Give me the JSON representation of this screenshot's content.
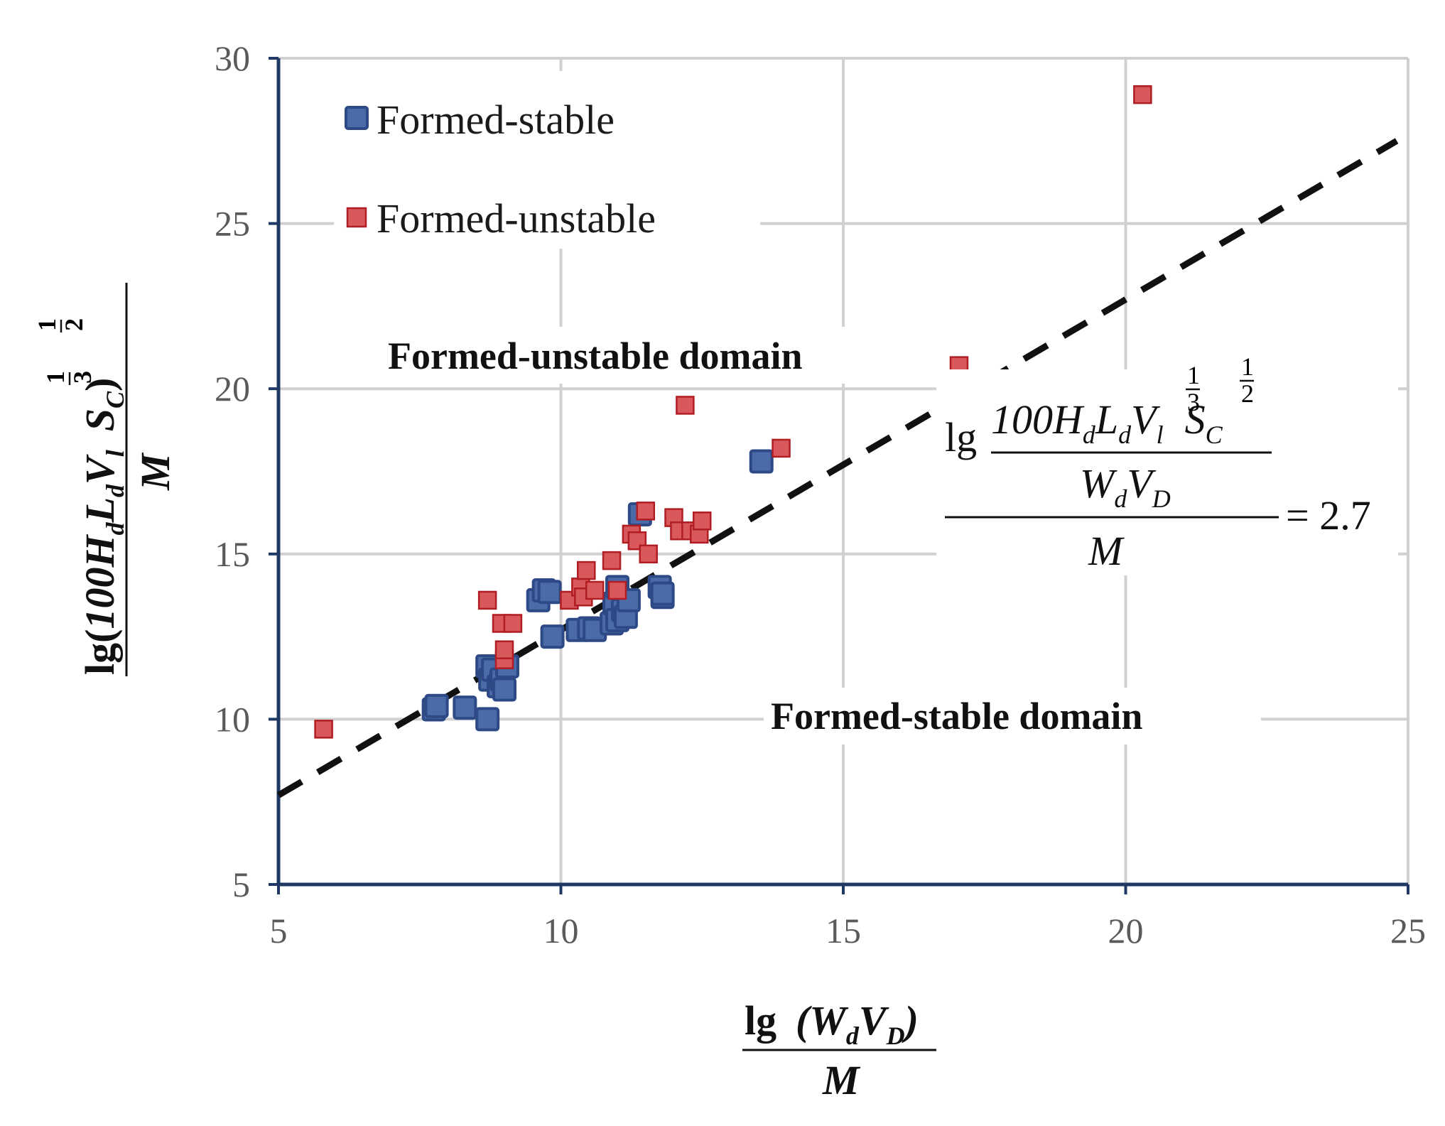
{
  "chart_data": {
    "type": "scatter",
    "xlim": [
      5,
      25
    ],
    "ylim": [
      5,
      30
    ],
    "x_ticks": [
      5,
      10,
      15,
      20,
      25
    ],
    "y_ticks": [
      5,
      10,
      15,
      20,
      25,
      30
    ],
    "grid": true,
    "legend_position": "top-left",
    "xlabel_parts": {
      "lg": "lg",
      "num": "(W",
      "num_sub1": "d",
      "num_mid": "V",
      "num_sub2": "D",
      "num_end": ")",
      "den": "M"
    },
    "ylabel_parts": {
      "lg": "lg",
      "open": "(",
      "num": "100H",
      "sub1": "d",
      "l": "L",
      "sub2": "d",
      "v": "V",
      "sub3": "l",
      "exp1": "1",
      "exp1den": "3",
      "s": "S",
      "sub4": "C",
      "exp2": "1",
      "exp2den": "2",
      "close": ")",
      "den": "M"
    },
    "series": [
      {
        "name": "Formed-stable",
        "color": "#4a6aa8",
        "edge": "#2e4a86",
        "marker": "square-large",
        "points": [
          [
            7.75,
            10.3
          ],
          [
            7.8,
            10.4
          ],
          [
            8.3,
            10.35
          ],
          [
            8.7,
            10.0
          ],
          [
            8.7,
            11.6
          ],
          [
            8.75,
            11.2
          ],
          [
            8.8,
            11.5
          ],
          [
            8.9,
            11.0
          ],
          [
            8.95,
            11.2
          ],
          [
            9.0,
            10.9
          ],
          [
            9.05,
            11.6
          ],
          [
            9.6,
            13.6
          ],
          [
            9.7,
            13.9
          ],
          [
            9.8,
            13.85
          ],
          [
            9.85,
            12.5
          ],
          [
            10.3,
            12.7
          ],
          [
            10.5,
            12.75
          ],
          [
            10.6,
            12.7
          ],
          [
            10.9,
            12.9
          ],
          [
            10.95,
            13.5
          ],
          [
            11.0,
            13.0
          ],
          [
            11.0,
            14.0
          ],
          [
            11.1,
            13.3
          ],
          [
            11.15,
            13.1
          ],
          [
            11.2,
            13.6
          ],
          [
            11.4,
            16.2
          ],
          [
            11.75,
            14.0
          ],
          [
            11.8,
            13.7
          ],
          [
            11.8,
            13.8
          ],
          [
            13.55,
            17.8
          ]
        ]
      },
      {
        "name": "Formed-unstable",
        "color": "#d9585c",
        "edge": "#b01e24",
        "marker": "square-small",
        "points": [
          [
            5.8,
            9.7
          ],
          [
            8.7,
            13.6
          ],
          [
            8.95,
            12.9
          ],
          [
            9.0,
            11.8
          ],
          [
            9.0,
            12.1
          ],
          [
            9.15,
            12.9
          ],
          [
            10.15,
            13.6
          ],
          [
            10.35,
            14.0
          ],
          [
            10.4,
            13.7
          ],
          [
            10.45,
            14.5
          ],
          [
            10.6,
            13.9
          ],
          [
            10.9,
            14.8
          ],
          [
            11.0,
            13.9
          ],
          [
            11.25,
            15.6
          ],
          [
            11.35,
            15.4
          ],
          [
            11.5,
            16.3
          ],
          [
            11.55,
            15.0
          ],
          [
            12.0,
            16.1
          ],
          [
            12.1,
            15.7
          ],
          [
            12.2,
            19.5
          ],
          [
            12.3,
            15.7
          ],
          [
            12.45,
            15.6
          ],
          [
            12.5,
            16.0
          ],
          [
            13.9,
            18.2
          ],
          [
            17.05,
            20.7
          ],
          [
            20.3,
            28.9
          ]
        ]
      }
    ],
    "boundary_line": {
      "style": "dashed",
      "color": "#111111",
      "x": [
        5,
        24.8
      ],
      "y": [
        7.7,
        27.5
      ]
    },
    "annotations": {
      "unstable_domain": "Formed-unstable domain",
      "stable_domain": "Formed-stable domain",
      "equation_rhs": "= 2.7"
    },
    "equation_parts": {
      "lg": "lg",
      "num": "100H",
      "sub1": "d",
      "l": "L",
      "sub2": "d",
      "v": "V",
      "sub3": "l",
      "exp1": "1",
      "exp1den": "3",
      "s": "S",
      "sub4": "C",
      "exp2": "1",
      "exp2den": "2",
      "mid_w": "W",
      "mid_sub1": "d",
      "mid_v": "V",
      "mid_sub2": "D",
      "den": "M"
    }
  }
}
